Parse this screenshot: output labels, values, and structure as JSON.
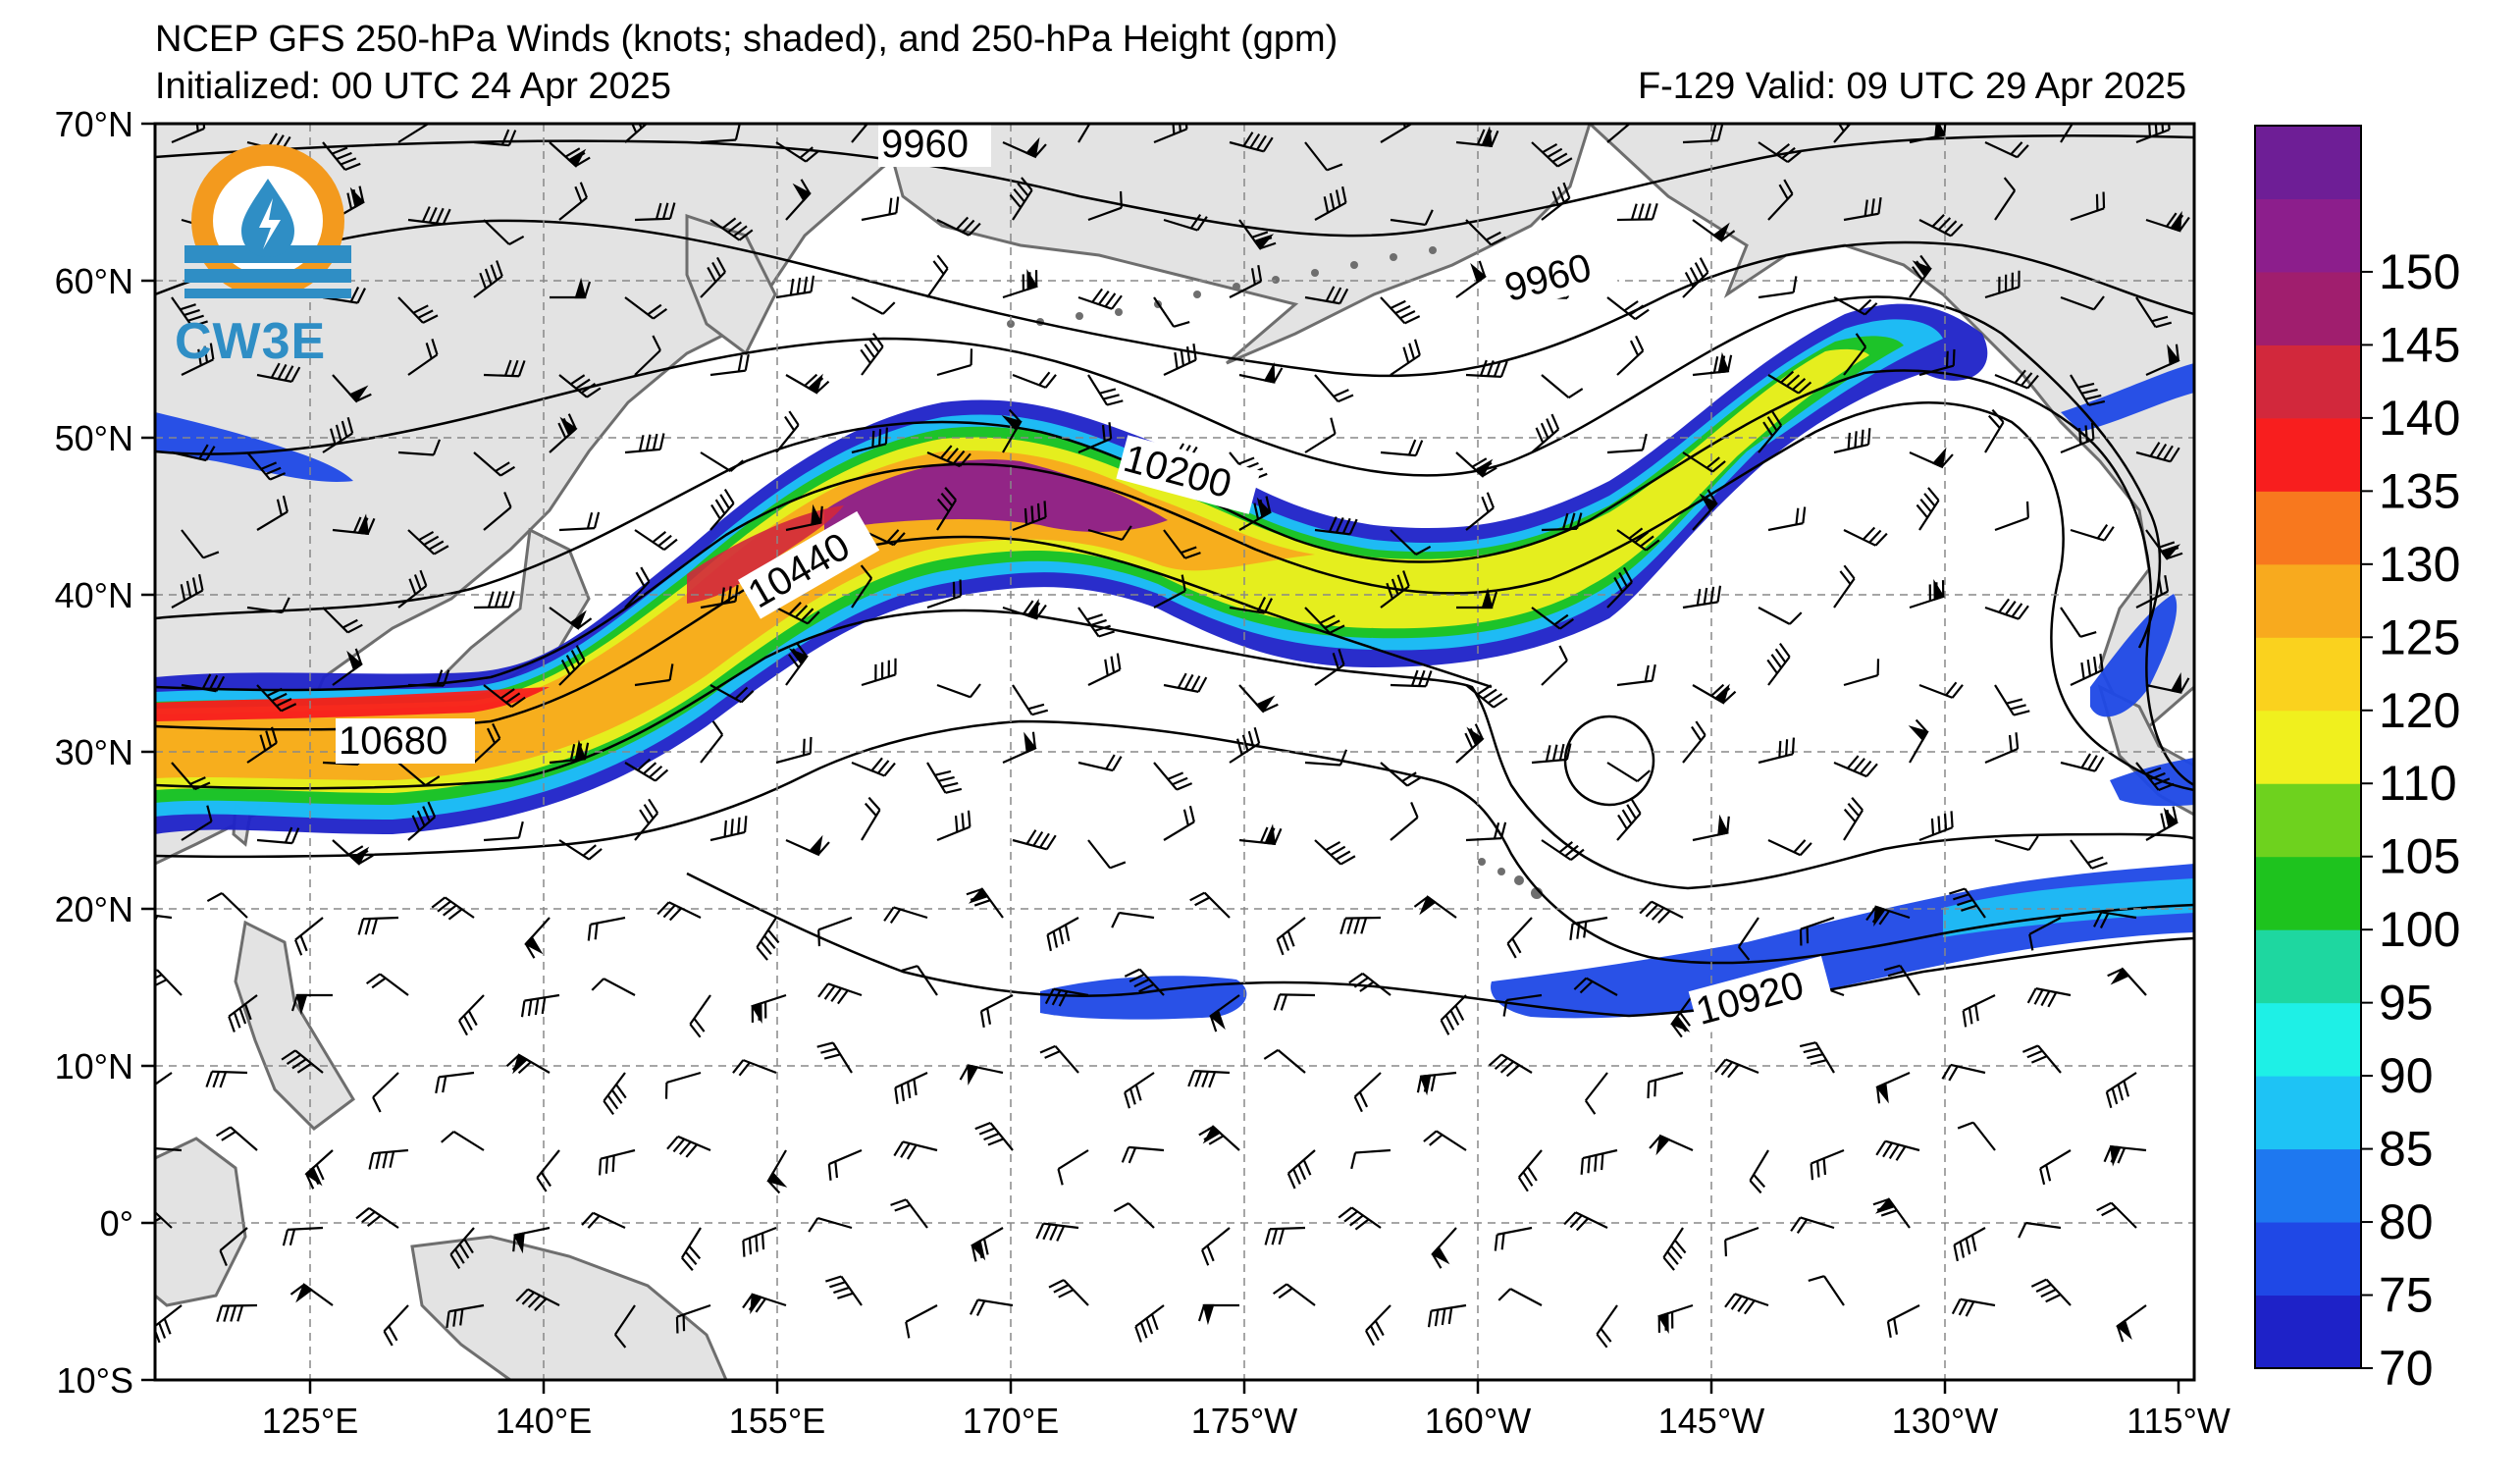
{
  "title": {
    "line1": "NCEP GFS 250-hPa Winds (knots; shaded), and 250-hPa Height (gpm)",
    "line2": "Initialized: 00 UTC 24 Apr 2025",
    "valid": "F-129  Valid: 09 UTC 29 Apr 2025"
  },
  "logo": {
    "text": "CW3E",
    "icon": "water-drop-sun-logo-icon"
  },
  "map": {
    "lon_range": [
      110,
      245
    ],
    "lat_range": [
      -10,
      70
    ],
    "lon_ticks": [
      "125°E",
      "140°E",
      "155°E",
      "170°E",
      "175°W",
      "160°W",
      "145°W",
      "130°W",
      "115°W"
    ],
    "lat_ticks": [
      "70°N",
      "60°N",
      "50°N",
      "40°N",
      "30°N",
      "20°N",
      "10°N",
      "0°",
      "10°S"
    ],
    "grid": "dashed",
    "contour_labels": [
      "9960",
      "9960",
      "10200",
      "10440",
      "10680",
      "10920"
    ]
  },
  "colorbar": {
    "levels": [
      70,
      75,
      80,
      85,
      90,
      95,
      100,
      105,
      110,
      120,
      125,
      130,
      135,
      140,
      145,
      150
    ],
    "tick_labels": [
      "70",
      "75",
      "80",
      "85",
      "90",
      "95",
      "100",
      "105",
      "110",
      "120",
      "125",
      "130",
      "135",
      "140",
      "145",
      "150"
    ],
    "colors": [
      "#1e22c8",
      "#1f48e6",
      "#1e78f0",
      "#1ec3f5",
      "#1ef0e6",
      "#1ed7a0",
      "#1ec31e",
      "#6ed21e",
      "#f0f01e",
      "#fad21e",
      "#f8aa1e",
      "#f8781e",
      "#f81e1e",
      "#d2283c",
      "#a01e6e",
      "#8c1e8c",
      "#6e1e96"
    ]
  }
}
